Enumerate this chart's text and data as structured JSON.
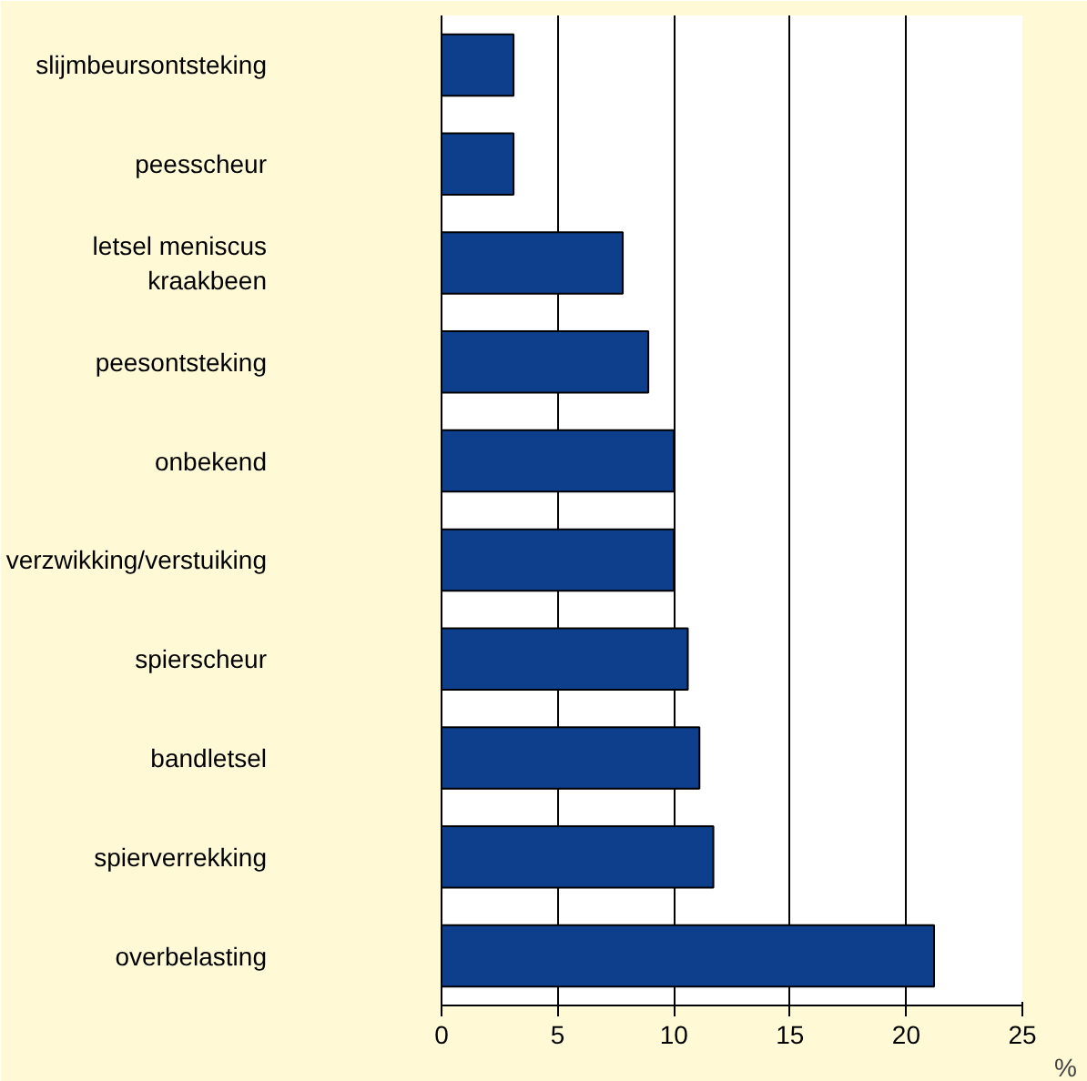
{
  "chart_data": {
    "type": "bar",
    "orientation": "horizontal",
    "xlabel": "%",
    "categories": [
      "slijmbeursontsteking",
      "peesscheur",
      "letsel meniscus kraakbeen",
      "peesontsteking",
      "onbekend",
      "verzwikking/verstuiking",
      "spierscheur",
      "bandletsel",
      "spierverrekking",
      "overbelasting"
    ],
    "values": [
      3.1,
      3.1,
      7.8,
      8.9,
      10.0,
      10.0,
      10.6,
      11.1,
      11.7,
      21.2
    ],
    "color": "#0d3f8c",
    "xlim": [
      0,
      25
    ],
    "xticks": [
      0,
      5,
      10,
      15,
      20,
      25
    ],
    "grid": "x"
  }
}
